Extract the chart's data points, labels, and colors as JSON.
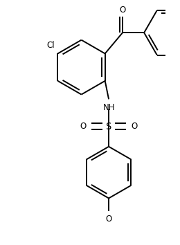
{
  "bg_color": "#ffffff",
  "line_color": "#000000",
  "lw": 1.4,
  "fs": 8.5,
  "fs_small": 8.0,
  "ring_r": 0.38,
  "ring2_r": 0.36,
  "ring3_r": 0.36,
  "do": 0.042,
  "xlim": [
    -0.55,
    1.55
  ],
  "ylim": [
    -2.05,
    1.35
  ]
}
